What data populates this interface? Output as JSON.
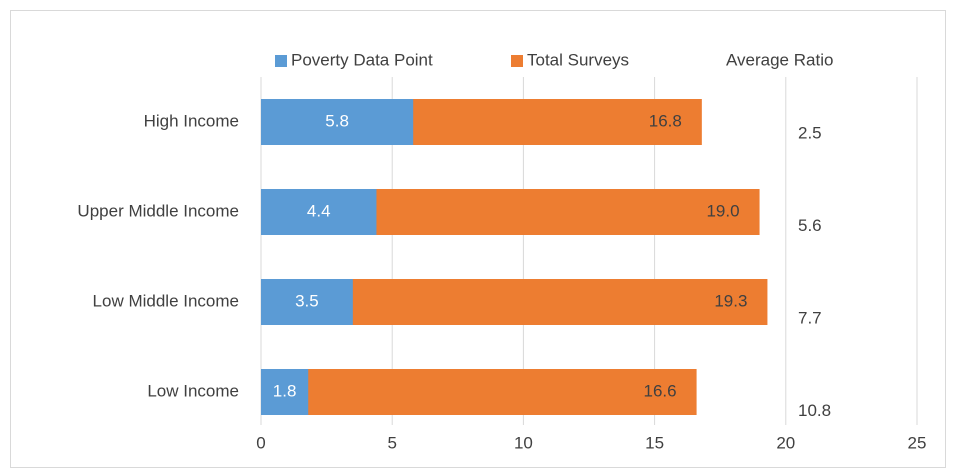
{
  "chart_data": {
    "type": "bar",
    "orientation": "horizontal",
    "overlap": true,
    "categories": [
      "High Income",
      "Upper Middle Income",
      "Low Middle Income",
      "Low Income"
    ],
    "series": [
      {
        "name": "Poverty Data Point",
        "color": "#5b9bd5",
        "values": [
          5.8,
          4.4,
          3.5,
          1.8
        ]
      },
      {
        "name": "Total Surveys",
        "color": "#ed7d31",
        "values": [
          16.8,
          19,
          19.3,
          16.6
        ],
        "value_labels": [
          "16.8",
          "19.0",
          "19.3",
          "16.6"
        ]
      },
      {
        "name": "Average Ratio",
        "values": [
          2.5,
          5.6,
          7.7,
          10.8
        ]
      }
    ],
    "xlim": [
      0,
      25
    ],
    "xticks": [
      0,
      5,
      10,
      15,
      20,
      25
    ],
    "grid": true,
    "legend": "top"
  }
}
